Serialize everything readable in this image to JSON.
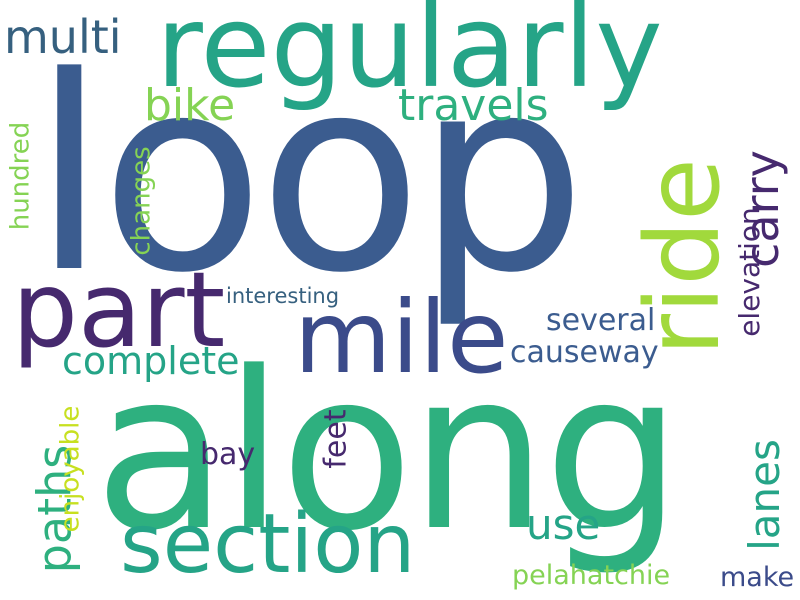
{
  "words": {
    "loop": "loop",
    "along": "along",
    "regularly": "regularly",
    "ride": "ride",
    "part": "part",
    "mile": "mile",
    "section": "section",
    "multi": "multi",
    "bike": "bike",
    "travels": "travels",
    "carry": "carry",
    "complete": "complete",
    "paths": "paths",
    "enjoyable": "enjoyable",
    "hundred": "hundred",
    "changes": "changes",
    "interesting": "interesting",
    "several": "several",
    "causeway": "causeway",
    "elevation": "elevation",
    "feet": "feet",
    "bay": "bay",
    "use": "use",
    "lanes": "lanes",
    "pelahatchie": "pelahatchie",
    "make": "make"
  },
  "colors": {
    "dark_blue": "#3b5c8f",
    "purple": "#46296e",
    "indigo": "#3b4b8a",
    "teal": "#25a487",
    "green": "#2eb07f",
    "lime": "#a1d93c",
    "yellow_green": "#c7e020",
    "light_green": "#85d354",
    "slate": "#36607f"
  }
}
